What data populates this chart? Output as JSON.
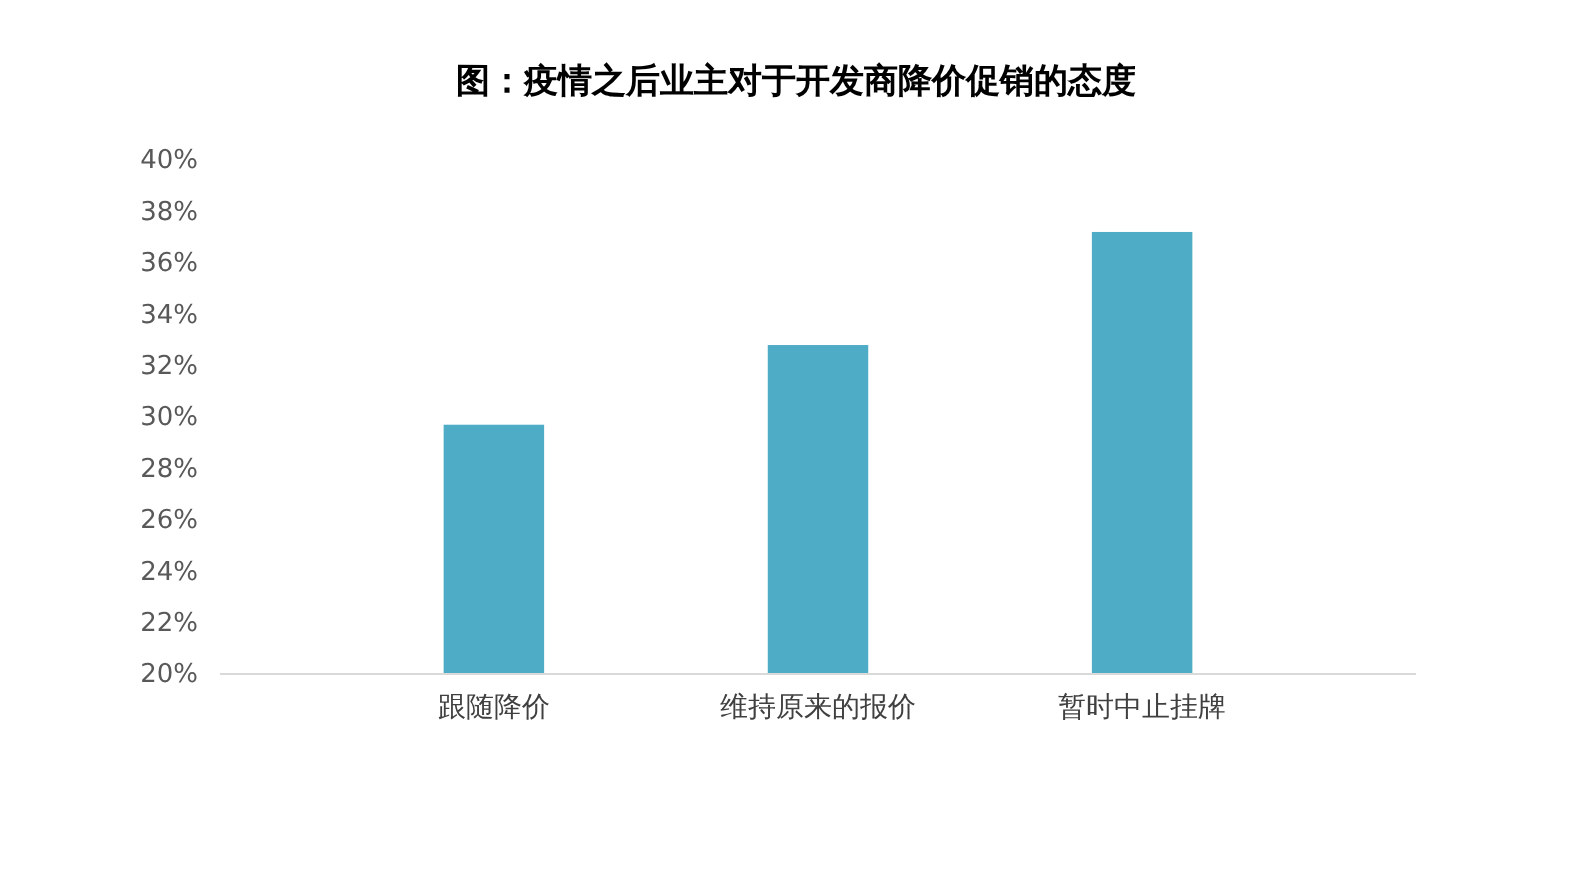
{
  "chart_data": {
    "type": "bar",
    "title": "图：疫情之后业主对于开发商降价促销的态度",
    "categories": [
      "跟随降价",
      "维持原来的报价",
      "暂时中止挂牌"
    ],
    "values": [
      29.7,
      32.8,
      37.2
    ],
    "color": "#4eacc6",
    "ylim": [
      20,
      40
    ],
    "yticks": [
      {
        "value": 20,
        "label": "20%"
      },
      {
        "value": 22,
        "label": "22%"
      },
      {
        "value": 24,
        "label": "24%"
      },
      {
        "value": 26,
        "label": "26%"
      },
      {
        "value": 28,
        "label": "28%"
      },
      {
        "value": 30,
        "label": "30%"
      },
      {
        "value": 32,
        "label": "32%"
      },
      {
        "value": 34,
        "label": "34%"
      },
      {
        "value": 36,
        "label": "36%"
      },
      {
        "value": 38,
        "label": "38%"
      },
      {
        "value": 40,
        "label": "40%"
      }
    ],
    "grid": false
  }
}
